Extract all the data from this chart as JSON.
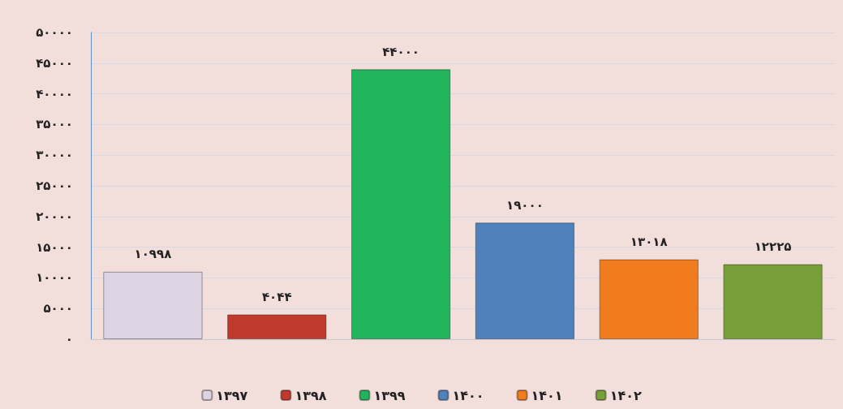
{
  "chart_data": {
    "type": "bar",
    "categories": [
      null,
      null,
      null,
      null,
      null,
      null
    ],
    "series": [
      {
        "name": "۱۳۹۷",
        "color": "#ddd3e3",
        "values": [
          10998,
          null,
          null,
          null,
          null,
          null
        ],
        "value_labels": [
          "۱۰۹۹۸",
          null,
          null,
          null,
          null,
          null
        ]
      },
      {
        "name": "۱۳۹۸",
        "color": "#c0392b",
        "values": [
          null,
          4044,
          null,
          null,
          null,
          null
        ],
        "value_labels": [
          null,
          "۴۰۴۴",
          null,
          null,
          null,
          null
        ]
      },
      {
        "name": "۱۳۹۹",
        "color": "#22b45a",
        "values": [
          null,
          null,
          44000,
          null,
          null,
          null
        ],
        "value_labels": [
          null,
          null,
          "۴۴۰۰۰",
          null,
          null,
          null
        ]
      },
      {
        "name": "۱۴۰۰",
        "color": "#4f81bd",
        "values": [
          null,
          null,
          null,
          19000,
          null,
          null
        ],
        "value_labels": [
          null,
          null,
          null,
          "۱۹۰۰۰",
          null,
          null
        ]
      },
      {
        "name": "۱۴۰۱",
        "color": "#f07c1e",
        "values": [
          null,
          null,
          null,
          null,
          13018,
          null
        ],
        "value_labels": [
          null,
          null,
          null,
          null,
          "۱۳۰۱۸",
          null
        ]
      },
      {
        "name": "۱۴۰۲",
        "color": "#77a03a",
        "values": [
          null,
          null,
          null,
          null,
          null,
          12225
        ],
        "value_labels": [
          null,
          null,
          null,
          null,
          null,
          "۱۲۲۲۵"
        ]
      }
    ],
    "ylim": [
      0,
      50000
    ],
    "yticks": [
      {
        "value": 0,
        "label": "۰"
      },
      {
        "value": 5000,
        "label": "۵۰۰۰"
      },
      {
        "value": 10000,
        "label": "۱۰۰۰۰"
      },
      {
        "value": 15000,
        "label": "۱۵۰۰۰"
      },
      {
        "value": 20000,
        "label": "۲۰۰۰۰"
      },
      {
        "value": 25000,
        "label": "۲۵۰۰۰"
      },
      {
        "value": 30000,
        "label": "۳۰۰۰۰"
      },
      {
        "value": 35000,
        "label": "۳۵۰۰۰"
      },
      {
        "value": 40000,
        "label": "۴۰۰۰۰"
      },
      {
        "value": 45000,
        "label": "۴۵۰۰۰"
      },
      {
        "value": 50000,
        "label": "۵۰۰۰۰"
      }
    ],
    "grid": "y",
    "legend": "bottom",
    "tick_labels": "y"
  }
}
